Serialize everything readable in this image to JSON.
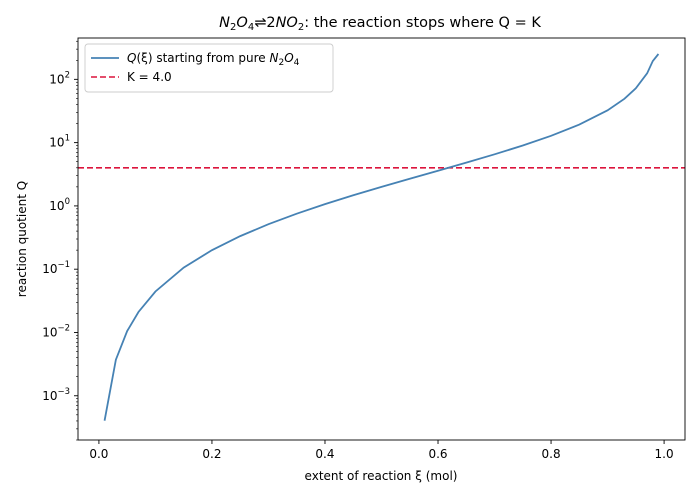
{
  "chart_data": {
    "type": "line",
    "title": {
      "reactant": "N",
      "reactant_sub1": "2",
      "reactant_rest": "O",
      "reactant_sub2": "4",
      "arrow": "⇌",
      "product_coef": "2",
      "product": "NO",
      "product_sub": "2",
      "tail": ": the reaction stops where Q = K"
    },
    "xlabel": "extent of reaction ξ (mol)",
    "ylabel": "reaction quotient Q",
    "xlim": [
      -0.037,
      1.037
    ],
    "ylim": [
      0.0002,
      450
    ],
    "yscale": "log",
    "grid": false,
    "legend_placement": "top-left",
    "x_ticks": [
      "0.0",
      "0.2",
      "0.4",
      "0.6",
      "0.8",
      "1.0"
    ],
    "y_ticks": [
      {
        "base": "10",
        "exp": "−3",
        "value": 0.001
      },
      {
        "base": "10",
        "exp": "−2",
        "value": 0.01
      },
      {
        "base": "10",
        "exp": "−1",
        "value": 0.1
      },
      {
        "base": "10",
        "exp": "0",
        "value": 1
      },
      {
        "base": "10",
        "exp": "1",
        "value": 10
      },
      {
        "base": "10",
        "exp": "2",
        "value": 100
      }
    ],
    "series": [
      {
        "name": "Q(ξ) starting from pure N2O4",
        "name_parts": {
          "q": "Q",
          "xi": "(ξ)",
          "text": " starting from pure ",
          "species": "N",
          "sub1": "2",
          "mid": "O",
          "sub2": "4"
        },
        "color": "#4682b4",
        "x": [
          0.01,
          0.03,
          0.05,
          0.07,
          0.1,
          0.15,
          0.2,
          0.25,
          0.3,
          0.35,
          0.4,
          0.45,
          0.5,
          0.55,
          0.6,
          0.65,
          0.7,
          0.75,
          0.8,
          0.85,
          0.9,
          0.93,
          0.95,
          0.97,
          0.98,
          0.99
        ],
        "y": [
          0.000404,
          0.00371,
          0.01053,
          0.02108,
          0.04444,
          0.1059,
          0.2,
          0.3333,
          0.5143,
          0.7538,
          1.0667,
          1.473,
          2.0,
          2.689,
          3.6,
          4.829,
          6.533,
          9.0,
          12.8,
          19.27,
          32.4,
          49.44,
          72.2,
          124.5,
          194.5,
          394.0
        ]
      },
      {
        "name": "K = 4.0",
        "color": "#dc143c",
        "style": "dashed",
        "y_constant": 4.0
      }
    ]
  }
}
